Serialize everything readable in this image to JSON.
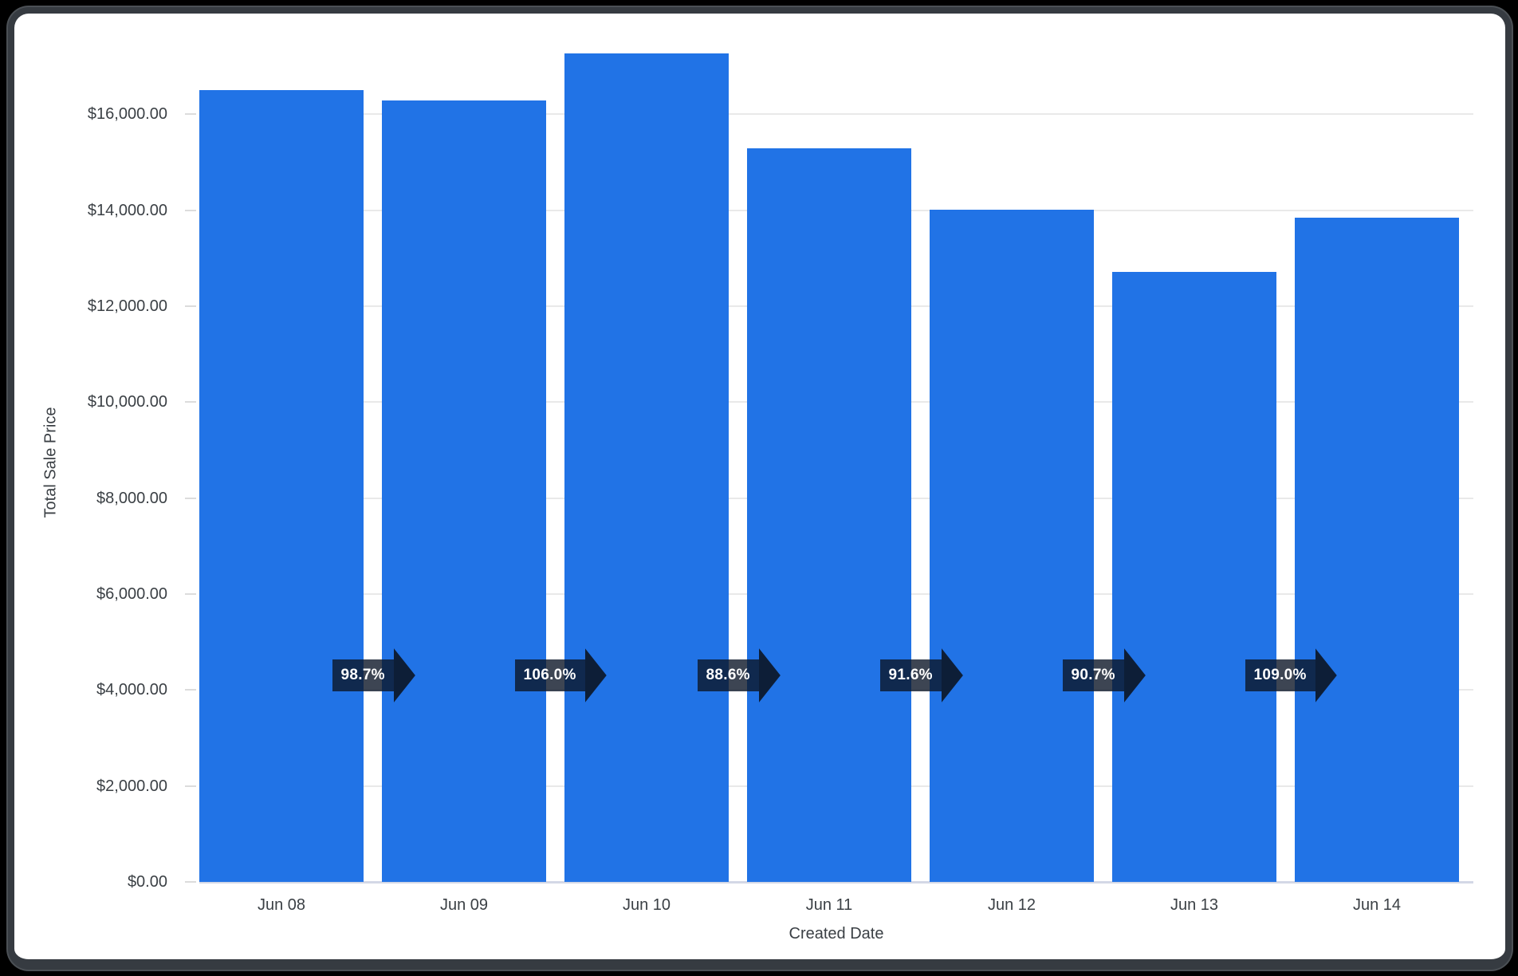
{
  "frame": {
    "outer_background": "#000000",
    "border_color": "#363b41",
    "card_background": "#ffffff"
  },
  "chart_data": {
    "type": "bar",
    "title": "",
    "xlabel": "Created Date",
    "ylabel": "Total Sale Price",
    "categories": [
      "Jun 08",
      "Jun 09",
      "Jun 10",
      "Jun 11",
      "Jun 12",
      "Jun 13",
      "Jun 14"
    ],
    "values": [
      16500,
      16286,
      17263,
      15295,
      14010,
      12707,
      13851
    ],
    "ylim": [
      0,
      17500
    ],
    "ytick_interval": 2000,
    "ytick_labels": [
      "$0.00",
      "$2,000.00",
      "$4,000.00",
      "$6,000.00",
      "$8,000.00",
      "$10,000.00",
      "$12,000.00",
      "$14,000.00",
      "$16,000.00"
    ],
    "grid": true,
    "legend": "none",
    "bar_color": "#2173e6",
    "axis_text_color": "#3b4045",
    "growth_badges": {
      "labels": [
        "98.7%",
        "106.0%",
        "88.6%",
        "91.6%",
        "90.7%",
        "109.0%"
      ],
      "position": "between-adjacent-bars",
      "shape": "right-arrow",
      "background": "#0c1728",
      "text_color": "#ffffff"
    }
  }
}
